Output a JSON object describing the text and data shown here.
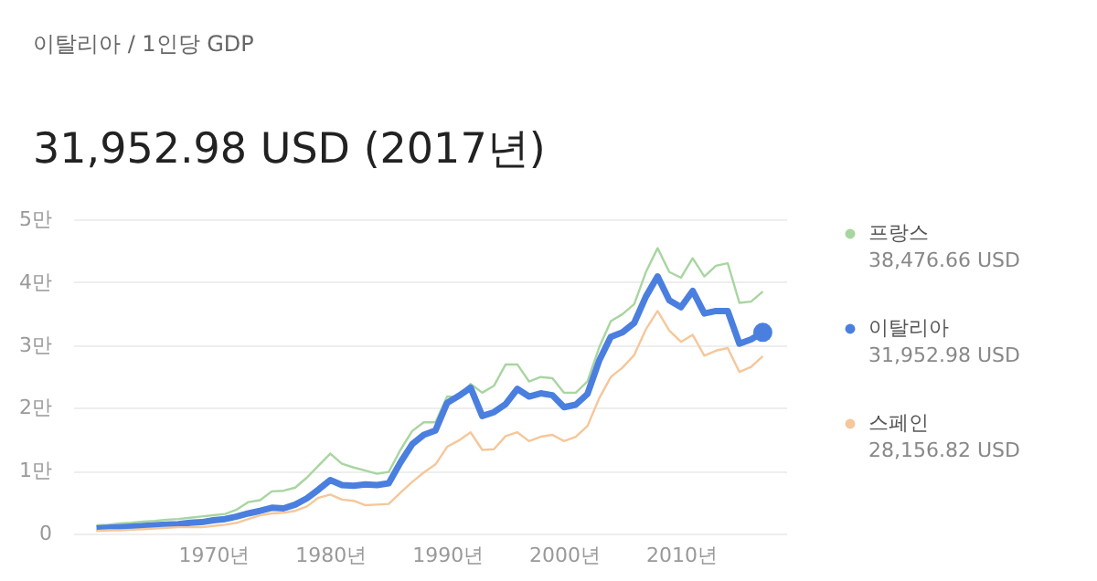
{
  "chart_data": {
    "type": "line",
    "subtitle": "이탈리아 / 1인당 GDP",
    "title": "31,952.98 USD (2017년)",
    "x": [
      1960,
      1961,
      1962,
      1963,
      1964,
      1965,
      1966,
      1967,
      1968,
      1969,
      1970,
      1971,
      1972,
      1973,
      1974,
      1975,
      1976,
      1977,
      1978,
      1979,
      1980,
      1981,
      1982,
      1983,
      1984,
      1985,
      1986,
      1987,
      1988,
      1989,
      1990,
      1991,
      1992,
      1993,
      1994,
      1995,
      1996,
      1997,
      1998,
      1999,
      2000,
      2001,
      2002,
      2003,
      2004,
      2005,
      2006,
      2007,
      2008,
      2009,
      2010,
      2011,
      2012,
      2013,
      2014,
      2015,
      2016,
      2017
    ],
    "series": [
      {
        "name": "프랑스",
        "color": "#a8d5a0",
        "values": [
          0.13,
          0.14,
          0.16,
          0.17,
          0.19,
          0.2,
          0.22,
          0.23,
          0.25,
          0.27,
          0.29,
          0.31,
          0.38,
          0.5,
          0.53,
          0.67,
          0.68,
          0.73,
          0.89,
          1.08,
          1.27,
          1.11,
          1.05,
          1.0,
          0.95,
          0.98,
          1.33,
          1.63,
          1.77,
          1.77,
          2.18,
          2.17,
          2.38,
          2.24,
          2.35,
          2.69,
          2.69,
          2.42,
          2.49,
          2.47,
          2.24,
          2.24,
          2.42,
          2.96,
          3.38,
          3.49,
          3.65,
          4.16,
          4.54,
          4.16,
          4.07,
          4.38,
          4.09,
          4.26,
          4.3,
          3.67,
          3.69,
          3.85
        ]
      },
      {
        "name": "이탈리아",
        "color": "#4a7fe0",
        "values": [
          0.08,
          0.09,
          0.1,
          0.11,
          0.12,
          0.13,
          0.14,
          0.15,
          0.17,
          0.18,
          0.21,
          0.23,
          0.27,
          0.32,
          0.36,
          0.41,
          0.4,
          0.46,
          0.56,
          0.7,
          0.85,
          0.77,
          0.76,
          0.78,
          0.77,
          0.8,
          1.13,
          1.42,
          1.57,
          1.64,
          2.08,
          2.19,
          2.32,
          1.87,
          1.93,
          2.06,
          2.3,
          2.18,
          2.23,
          2.2,
          2.01,
          2.05,
          2.22,
          2.75,
          3.13,
          3.2,
          3.35,
          3.77,
          4.09,
          3.71,
          3.6,
          3.86,
          3.5,
          3.54,
          3.54,
          3.02,
          3.09,
          3.2
        ]
      },
      {
        "name": "스페인",
        "color": "#f5c79a",
        "values": [
          0.04,
          0.05,
          0.05,
          0.06,
          0.07,
          0.08,
          0.09,
          0.1,
          0.1,
          0.1,
          0.12,
          0.14,
          0.17,
          0.23,
          0.29,
          0.32,
          0.33,
          0.36,
          0.43,
          0.57,
          0.62,
          0.54,
          0.52,
          0.45,
          0.46,
          0.47,
          0.65,
          0.82,
          0.97,
          1.1,
          1.38,
          1.48,
          1.61,
          1.33,
          1.34,
          1.55,
          1.61,
          1.47,
          1.54,
          1.57,
          1.47,
          1.54,
          1.71,
          2.15,
          2.49,
          2.64,
          2.84,
          3.25,
          3.54,
          3.23,
          3.05,
          3.16,
          2.83,
          2.91,
          2.95,
          2.57,
          2.65,
          2.82
        ]
      },
      {
        "type": "scatter",
        "marker": "circle",
        "color": "#4a7fe0",
        "x": [
          2017
        ],
        "values": [
          3.2
        ]
      }
    ],
    "annotations": [
      "38,476.66 USD",
      "31,952.98 USD",
      "28,156.82 USD"
    ],
    "xlim": [
      1958,
      2019
    ],
    "xticks": [
      {
        "value": 1970,
        "label": "1970년"
      },
      {
        "value": 1980,
        "label": "1980년"
      },
      {
        "value": 1990,
        "label": "1990년"
      },
      {
        "value": 2000,
        "label": "2000년"
      },
      {
        "value": 2010,
        "label": "2010년"
      }
    ],
    "ylim": [
      0,
      5
    ],
    "yticks": [
      0,
      {
        "value": 1,
        "label": "1만"
      },
      {
        "value": 2,
        "label": "2만"
      },
      {
        "value": 3,
        "label": "3만"
      },
      {
        "value": 4,
        "label": "4만"
      },
      {
        "value": 5,
        "label": "5만"
      }
    ],
    "grid": "y",
    "legend": "right",
    "marker": "none",
    "line_style": "solid"
  }
}
